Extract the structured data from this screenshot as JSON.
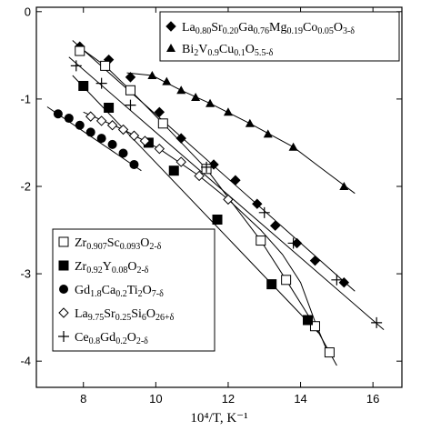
{
  "chart_data": {
    "type": "scatter",
    "title": "",
    "xlabel": "10⁴/T, K⁻¹",
    "ylabel": "",
    "xlim": [
      6.7,
      16.8
    ],
    "ylim": [
      -4.3,
      0.05
    ],
    "x_ticks": [
      8,
      10,
      12,
      14,
      16
    ],
    "y_ticks": [
      0,
      -1,
      -2,
      -3,
      -4
    ],
    "x_tick_labels": [
      "8",
      "10",
      "12",
      "14",
      "16"
    ],
    "y_tick_labels": [
      "0",
      "-1",
      "-2",
      "-3",
      "-4"
    ],
    "grid": false,
    "colors": {
      "marker": "#000000",
      "line": "#000000"
    },
    "series": [
      {
        "name": "La0.80Sr0.20Ga0.76Mg0.19Co0.05O3-δ",
        "legend_parts": [
          [
            "La",
            ""
          ],
          [
            "0.80",
            "sub"
          ],
          [
            "Sr",
            ""
          ],
          [
            "0.20",
            "sub"
          ],
          [
            "Ga",
            ""
          ],
          [
            "0.76",
            "sub"
          ],
          [
            "Mg",
            ""
          ],
          [
            "0.19",
            "sub"
          ],
          [
            "Co",
            ""
          ],
          [
            "0.05",
            "sub"
          ],
          [
            "O",
            ""
          ],
          [
            "3-δ",
            "sub"
          ]
        ],
        "marker": "diamond",
        "legend_group": "top",
        "x": [
          7.9,
          8.7,
          9.3,
          10.1,
          10.7,
          11.6,
          12.2,
          12.8,
          13.3,
          13.9,
          14.4,
          15.2
        ],
        "y": [
          -0.4,
          -0.55,
          -0.75,
          -1.15,
          -1.45,
          -1.75,
          -1.93,
          -2.2,
          -2.45,
          -2.65,
          -2.85,
          -3.1
        ],
        "fit": [
          [
            7.7,
            -0.33
          ],
          [
            15.5,
            -3.2
          ]
        ]
      },
      {
        "name": "Bi2V0.9Cu0.1O5.5-δ",
        "legend_parts": [
          [
            "Bi",
            ""
          ],
          [
            "2",
            "sub"
          ],
          [
            "V",
            ""
          ],
          [
            "0.9",
            "sub"
          ],
          [
            "Cu",
            ""
          ],
          [
            "0.1",
            "sub"
          ],
          [
            "O",
            ""
          ],
          [
            "5.5-δ",
            "sub"
          ]
        ],
        "marker": "triangle",
        "legend_group": "top",
        "x": [
          9.9,
          10.3,
          10.7,
          11.1,
          11.5,
          12.0,
          12.6,
          13.1,
          13.8,
          15.2
        ],
        "y": [
          -0.73,
          -0.8,
          -0.9,
          -0.98,
          -1.05,
          -1.15,
          -1.28,
          -1.4,
          -1.55,
          -2.0
        ],
        "fit": [
          [
            9.2,
            -0.7
          ],
          [
            9.9,
            -0.73
          ],
          [
            10.7,
            -0.9
          ],
          [
            11.5,
            -1.05
          ],
          [
            12.6,
            -1.28
          ],
          [
            13.8,
            -1.55
          ],
          [
            14.5,
            -1.77
          ],
          [
            15.5,
            -2.08
          ]
        ]
      },
      {
        "name": "Zr0.907Sc0.093O2-δ",
        "legend_parts": [
          [
            "Zr",
            ""
          ],
          [
            "0.907",
            "sub"
          ],
          [
            "Sc",
            ""
          ],
          [
            "0.093",
            "sub"
          ],
          [
            "O",
            ""
          ],
          [
            "2-δ",
            "sub"
          ]
        ],
        "marker": "square-open",
        "legend_group": "bottom",
        "x": [
          7.9,
          8.6,
          9.3,
          10.2,
          11.4,
          12.9,
          13.6,
          14.4,
          14.8
        ],
        "y": [
          -0.45,
          -0.62,
          -0.9,
          -1.28,
          -1.8,
          -2.62,
          -3.07,
          -3.6,
          -3.9
        ],
        "fit": [
          [
            7.8,
            -0.38
          ],
          [
            8.6,
            -0.62
          ],
          [
            9.3,
            -0.9
          ],
          [
            10.2,
            -1.28
          ],
          [
            11.4,
            -1.8
          ],
          [
            12.9,
            -2.62
          ],
          [
            13.6,
            -3.07
          ],
          [
            14.4,
            -3.6
          ],
          [
            15.0,
            -4.05
          ]
        ]
      },
      {
        "name": "Zr0.92Y0.08O2-δ",
        "legend_parts": [
          [
            "Zr",
            ""
          ],
          [
            "0.92",
            "sub"
          ],
          [
            "Y",
            ""
          ],
          [
            "0.08",
            "sub"
          ],
          [
            "O",
            ""
          ],
          [
            "2-δ",
            "sub"
          ]
        ],
        "marker": "square-filled",
        "legend_group": "bottom",
        "x": [
          8.0,
          8.7,
          9.8,
          10.5,
          11.7,
          13.2,
          14.2
        ],
        "y": [
          -0.85,
          -1.1,
          -1.5,
          -1.82,
          -2.38,
          -3.12,
          -3.53
        ],
        "fit": [
          [
            7.7,
            -0.73
          ],
          [
            14.5,
            -3.68
          ]
        ]
      },
      {
        "name": "Gd1.8Ca0.2Ti2O7-δ",
        "legend_parts": [
          [
            "Gd",
            ""
          ],
          [
            "1.8",
            "sub"
          ],
          [
            "Ca",
            ""
          ],
          [
            "0.2",
            "sub"
          ],
          [
            "Ti",
            ""
          ],
          [
            "2",
            "sub"
          ],
          [
            "O",
            ""
          ],
          [
            "7-δ",
            "sub"
          ]
        ],
        "marker": "circle-filled",
        "legend_group": "bottom",
        "x": [
          7.3,
          7.6,
          7.9,
          8.2,
          8.5,
          8.8,
          9.1,
          9.4
        ],
        "y": [
          -1.17,
          -1.22,
          -1.3,
          -1.38,
          -1.45,
          -1.52,
          -1.62,
          -1.75
        ],
        "fit": [
          [
            7.0,
            -1.09
          ],
          [
            9.6,
            -1.82
          ]
        ]
      },
      {
        "name": "La9.75Sr0.25Si6O26+δ",
        "legend_parts": [
          [
            "La",
            ""
          ],
          [
            "9.75",
            "sub"
          ],
          [
            "Sr",
            ""
          ],
          [
            "0.25",
            "sub"
          ],
          [
            "Si",
            ""
          ],
          [
            "6",
            "sub"
          ],
          [
            "O",
            ""
          ],
          [
            "26+δ",
            "sub"
          ]
        ],
        "marker": "diamond-open",
        "legend_group": "bottom",
        "x": [
          8.2,
          8.5,
          8.8,
          9.1,
          9.4,
          9.7,
          10.1,
          10.7,
          11.2,
          12.0
        ],
        "y": [
          -1.2,
          -1.25,
          -1.3,
          -1.35,
          -1.42,
          -1.48,
          -1.57,
          -1.72,
          -1.88,
          -2.15
        ],
        "fit": [
          [
            8.0,
            -1.15
          ],
          [
            9.1,
            -1.35
          ],
          [
            10.1,
            -1.57
          ],
          [
            11.2,
            -1.88
          ],
          [
            12.0,
            -2.15
          ],
          [
            12.9,
            -2.5
          ],
          [
            13.5,
            -2.78
          ],
          [
            14.0,
            -3.1
          ],
          [
            14.4,
            -3.55
          ],
          [
            14.8,
            -3.95
          ]
        ]
      },
      {
        "name": "Ce0.8Gd0.2O2-δ",
        "legend_parts": [
          [
            "Ce",
            ""
          ],
          [
            "0.8",
            "sub"
          ],
          [
            "Gd",
            ""
          ],
          [
            "0.2",
            "sub"
          ],
          [
            "O",
            ""
          ],
          [
            "2-δ",
            "sub"
          ]
        ],
        "marker": "plus",
        "legend_group": "bottom",
        "x": [
          7.8,
          8.5,
          9.3,
          11.4,
          13.0,
          13.8,
          15.0,
          16.1
        ],
        "y": [
          -0.62,
          -0.82,
          -1.07,
          -1.78,
          -2.3,
          -2.65,
          -3.07,
          -3.56
        ],
        "fit": [
          [
            7.6,
            -0.52
          ],
          [
            16.3,
            -3.64
          ]
        ]
      }
    ]
  }
}
